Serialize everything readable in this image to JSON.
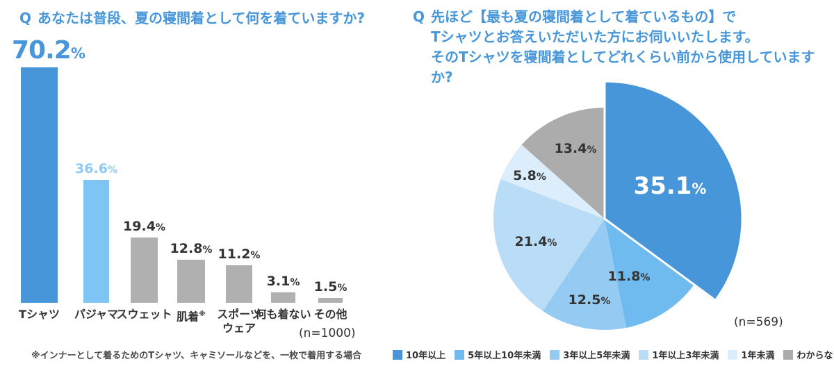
{
  "accent_color": "#4796DA",
  "text_color": "#333333",
  "chart_data": [
    {
      "type": "bar",
      "question_prefix": "Q",
      "title": "あなたは普段、夏の寝間着として何を着ていますか?",
      "categories": [
        "Tシャツ",
        "パジャマ",
        "スウェット",
        "肌着",
        "スポーツ\nウェア",
        "何も着ない",
        "その他"
      ],
      "category_marker": {
        "index": 3,
        "symbol": "※"
      },
      "values": [
        70.2,
        36.6,
        19.4,
        12.8,
        11.2,
        3.1,
        1.5
      ],
      "unit": "%",
      "n_label": "(n=1000)",
      "footnote": "※インナーとして着るためのTシャツ、キャミソールなどを、一枚で着用する場合",
      "bar_colors": [
        "#4796DA",
        "#7FC5F3",
        "#B0B0B0",
        "#B0B0B0",
        "#B0B0B0",
        "#B0B0B0",
        "#B0B0B0"
      ],
      "value_label_colors": [
        "#4796DA",
        "#8CCAF4",
        "#333333",
        "#333333",
        "#333333",
        "#333333",
        "#333333"
      ],
      "highlight_index": 0,
      "ylim": [
        0,
        75
      ],
      "grid": false
    },
    {
      "type": "pie",
      "question_prefix": "Q",
      "title_lines": [
        "先ほど【最も夏の寝間着として着ているもの】で",
        "Tシャツとお答えいただいた方にお伺いいたします。",
        "そのTシャツを寝間着としてどれくらい前から使用していますか?"
      ],
      "labels": [
        "10年以上",
        "5年以上10年未満",
        "3年以上5年未満",
        "1年以上3年未満",
        "1年未満",
        "わからない"
      ],
      "values": [
        35.1,
        11.8,
        12.5,
        21.4,
        5.8,
        13.4
      ],
      "unit": "%",
      "colors": [
        "#4796DA",
        "#6FBAEF",
        "#95CBF3",
        "#BADDF7",
        "#DCEEFC",
        "#ACACAC"
      ],
      "n_label": "(n=569)",
      "exploded_index": 0,
      "start_angle_deg": 0,
      "direction": "clockwise",
      "legend_position": "bottom"
    }
  ]
}
